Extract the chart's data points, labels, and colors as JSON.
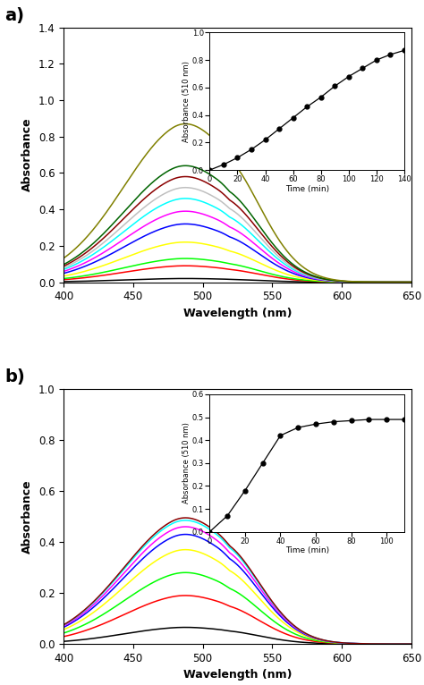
{
  "panel_a": {
    "title": "a)",
    "xlabel": "Wavelength (nm)",
    "ylabel": "Absorbance",
    "xlim": [
      400,
      650
    ],
    "ylim": [
      0,
      1.4
    ],
    "yticks": [
      0.0,
      0.2,
      0.4,
      0.6,
      0.8,
      1.0,
      1.2,
      1.4
    ],
    "xticks": [
      400,
      450,
      500,
      550,
      600,
      650
    ],
    "colors": [
      "black",
      "red",
      "lime",
      "yellow",
      "blue",
      "magenta",
      "cyan",
      "silver",
      "darkred",
      "darkgreen",
      "olive"
    ],
    "peak_wavelength": 510,
    "peak_heights": [
      0.02,
      0.09,
      0.13,
      0.22,
      0.32,
      0.39,
      0.46,
      0.52,
      0.58,
      0.64,
      0.87
    ],
    "inset": {
      "times": [
        0,
        10,
        20,
        30,
        40,
        50,
        60,
        70,
        80,
        90,
        100,
        110,
        120,
        130,
        140
      ],
      "absorbances": [
        0.0,
        0.04,
        0.09,
        0.15,
        0.22,
        0.3,
        0.38,
        0.46,
        0.53,
        0.61,
        0.68,
        0.74,
        0.8,
        0.84,
        0.87
      ],
      "xlabel": "Time (min)",
      "ylabel": "Absorbance (510 nm)",
      "xlim": [
        0,
        140
      ],
      "ylim": [
        0,
        1.0
      ],
      "xticks": [
        0,
        20,
        40,
        60,
        80,
        100,
        120,
        140
      ],
      "yticks": [
        0.0,
        0.2,
        0.4,
        0.6,
        0.8,
        1.0
      ]
    }
  },
  "panel_b": {
    "title": "b)",
    "xlabel": "Wavelength (nm)",
    "ylabel": "Absorbance",
    "xlim": [
      400,
      650
    ],
    "ylim": [
      0,
      1.0
    ],
    "yticks": [
      0.0,
      0.2,
      0.4,
      0.6,
      0.8,
      1.0
    ],
    "xticks": [
      400,
      450,
      500,
      550,
      600,
      650
    ],
    "colors": [
      "black",
      "red",
      "lime",
      "yellow",
      "blue",
      "magenta",
      "cyan",
      "darkred"
    ],
    "peak_wavelength": 510,
    "peak_heights": [
      0.065,
      0.19,
      0.28,
      0.37,
      0.43,
      0.46,
      0.485,
      0.495
    ],
    "inset": {
      "times": [
        0,
        10,
        20,
        30,
        40,
        50,
        60,
        70,
        80,
        90,
        100,
        110
      ],
      "absorbances": [
        0.0,
        0.07,
        0.18,
        0.3,
        0.42,
        0.455,
        0.47,
        0.48,
        0.485,
        0.49,
        0.49,
        0.49
      ],
      "xlabel": "Time (min)",
      "ylabel": "Absorbance (510 nm)",
      "xlim": [
        0,
        110
      ],
      "ylim": [
        0,
        0.6
      ],
      "xticks": [
        0,
        20,
        40,
        60,
        80,
        100
      ],
      "yticks": [
        0.0,
        0.1,
        0.2,
        0.3,
        0.4,
        0.5,
        0.6
      ]
    }
  }
}
